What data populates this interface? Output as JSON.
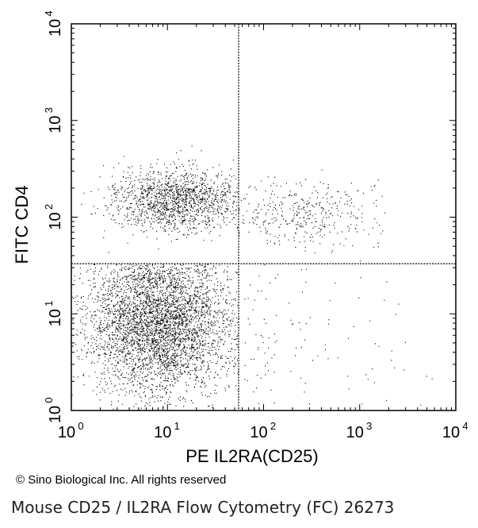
{
  "copyright": "© Sino Biological Inc. All rights reserved",
  "caption": "Mouse CD25 / IL2RA Flow Cytometry (FC) 26273",
  "chart_data": {
    "type": "scatter",
    "title": "",
    "xlabel": "PE IL2RA(CD25)",
    "ylabel": "FITC CD4",
    "x_scale": "log",
    "y_scale": "log",
    "xlim": [
      1,
      10000
    ],
    "ylim": [
      1,
      10000
    ],
    "x_ticks": [
      {
        "base": "10",
        "exp": "0"
      },
      {
        "base": "10",
        "exp": "1"
      },
      {
        "base": "10",
        "exp": "2"
      },
      {
        "base": "10",
        "exp": "3"
      },
      {
        "base": "10",
        "exp": "4"
      }
    ],
    "y_ticks": [
      {
        "base": "10",
        "exp": "0"
      },
      {
        "base": "10",
        "exp": "1"
      },
      {
        "base": "10",
        "exp": "2"
      },
      {
        "base": "10",
        "exp": "3"
      },
      {
        "base": "10",
        "exp": "4"
      }
    ],
    "quadrant_gates": {
      "x": 55,
      "y": 33
    },
    "grid": false,
    "legend": "none",
    "point_color": "#000000",
    "populations": [
      {
        "x_center": 8,
        "y_center": 8,
        "x_spread_decades": 0.38,
        "y_spread_decades": 0.36,
        "count": 4200,
        "x_max": 55,
        "y_max": 33
      },
      {
        "x_center": 12,
        "y_center": 150,
        "x_spread_decades": 0.33,
        "y_spread_decades": 0.16,
        "count": 1500,
        "x_max": 55
      },
      {
        "x_center": 280,
        "y_center": 110,
        "x_spread_decades": 0.38,
        "y_spread_decades": 0.18,
        "count": 380,
        "x_min": 55,
        "x_max": 2000
      },
      {
        "x_center": 300,
        "y_center": 4,
        "x_spread_decades": 0.7,
        "y_spread_decades": 0.45,
        "count": 120,
        "x_min": 60,
        "y_max": 30
      }
    ]
  }
}
